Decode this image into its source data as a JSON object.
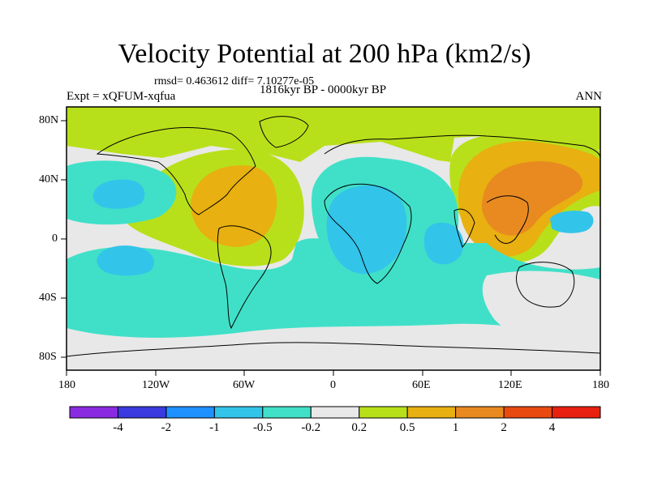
{
  "title": "Velocity Potential at 200 hPa (km2/s)",
  "stats": "rmsd= 0.463612 diff= 7.10277e-05",
  "experiment": "Expt = xQFUM-xqfua",
  "period": "1816kyr BP - 0000kyr BP",
  "season": "ANN",
  "axes": {
    "x_ticks": [
      "180",
      "120W",
      "60W",
      "0",
      "60E",
      "120E",
      "180"
    ],
    "y_ticks": [
      "80N",
      "40N",
      "0",
      "40S",
      "80S"
    ]
  },
  "colorbar": {
    "colors": [
      "#8a2be2",
      "#3a3ae0",
      "#1e90ff",
      "#33c4ea",
      "#40e0c8",
      "#e8e8e8",
      "#b8e01a",
      "#e8b010",
      "#e88a20",
      "#e84a10",
      "#e82010"
    ],
    "labels": [
      "-4",
      "-2",
      "-1",
      "-0.5",
      "-0.2",
      "0.2",
      "0.5",
      "1",
      "2",
      "4"
    ]
  }
}
